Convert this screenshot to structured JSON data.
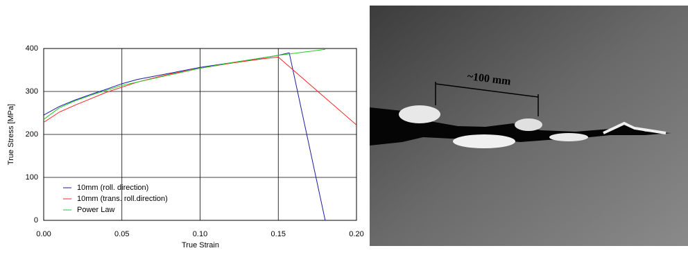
{
  "chart_data": {
    "type": "line",
    "x_label": "True Strain",
    "y_label": "True Stress [MPa]",
    "xlim": [
      0,
      0.2
    ],
    "ylim": [
      0,
      400
    ],
    "xticks": [
      {
        "value": 0,
        "label": "0.00"
      },
      {
        "value": 0.05,
        "label": "0.05"
      },
      {
        "value": 0.1,
        "label": "0.10"
      },
      {
        "value": 0.15,
        "label": "0.15"
      },
      {
        "value": 0.2,
        "label": "0.20"
      }
    ],
    "yticks": [
      0,
      100,
      200,
      300,
      400
    ],
    "grid": true,
    "legend": "lower-left",
    "series": [
      {
        "name": "10mm (roll. direction)",
        "color": "#1a1aa0",
        "x": [
          0,
          0.01,
          0.02,
          0.03,
          0.04,
          0.05,
          0.06,
          0.08,
          0.1,
          0.12,
          0.14,
          0.15,
          0.157,
          0.18
        ],
        "values": [
          245,
          265,
          280,
          293,
          305,
          318,
          328,
          342,
          356,
          367,
          378,
          384,
          390,
          0
        ]
      },
      {
        "name": "10mm (trans. roll.direction)",
        "color": "#ff2020",
        "x": [
          0,
          0.01,
          0.02,
          0.03,
          0.04,
          0.05,
          0.06,
          0.08,
          0.1,
          0.12,
          0.14,
          0.15,
          0.2
        ],
        "values": [
          228,
          252,
          268,
          283,
          298,
          310,
          322,
          340,
          354,
          366,
          376,
          380,
          222
        ]
      },
      {
        "name": "Power Law",
        "color": "#22cc22",
        "x": [
          0,
          0.01,
          0.02,
          0.03,
          0.05,
          0.08,
          0.1,
          0.12,
          0.15,
          0.18
        ],
        "values": [
          235,
          262,
          278,
          291,
          314,
          338,
          354,
          367,
          384,
          398
        ]
      }
    ]
  },
  "image": {
    "annotation": "~100 mm"
  }
}
